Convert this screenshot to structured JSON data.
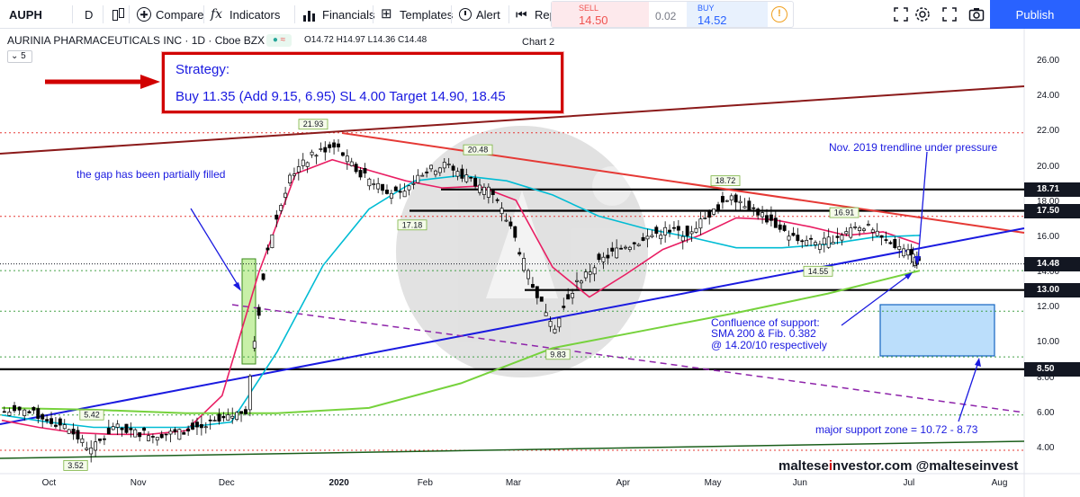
{
  "toolbar": {
    "symbol": "AUPH",
    "interval": "D",
    "compare": "Compare",
    "indicators": "Indicators",
    "financials": "Financials",
    "templates": "Templates",
    "alert": "Alert",
    "replay": "Replay",
    "sell_label": "SELL",
    "sell_price": "14.50",
    "spread": "0.02",
    "buy_label": "BUY",
    "buy_price": "14.52",
    "info": "!",
    "publish": "Publish"
  },
  "legend": {
    "title": "AURINIA PHARMACEUTICALS INC · 1D · Cboe BZX",
    "ohlc": "O14.72 H14.97 L14.36 C14.48",
    "chart_name": "Chart 2",
    "collapse": "5"
  },
  "strategy": {
    "title": "Strategy:",
    "text": "Buy 11.35 (Add 9.15, 6.95) SL 4.00 Target 14.90, 18.45"
  },
  "annotations": {
    "gap": "the gap has been partially filled",
    "trendline": "Nov. 2019 trendline under pressure",
    "confluence_1": "Confluence of support:",
    "confluence_2": "SMA 200 & Fib. 0.382",
    "confluence_3": "@ 14.20/10 respectively",
    "support_zone": "major support zone = 10.72 - 8.73"
  },
  "watermark": {
    "part1": "maltese",
    "part2": "i",
    "part3": "nvestor.com @malteseinvest"
  },
  "colors": {
    "accent": "#2962ff",
    "strategy_border": "#d10000",
    "annotation_text": "#1a1ae0",
    "sma_red": "#e91e63",
    "sma_cyan": "#00bcd4",
    "sma_green": "#76d23c",
    "trend_blue": "#1a1ae0",
    "resistance_red": "#e53935",
    "channel_darkred": "#8b1a1a",
    "support_zone_fill": "#bbdefb"
  },
  "icons": [
    "plus-circle-icon",
    "candles-icon",
    "fx-icon",
    "bars-icon",
    "templates-icon",
    "alarm-clock-icon",
    "replay-icon",
    "info-icon",
    "fullscreen-icon",
    "settings-icon",
    "fullscreen-icon",
    "camera-icon"
  ],
  "chart_data": {
    "type": "candlestick",
    "symbol": "AUPH",
    "x_ticks": [
      "Oct",
      "Nov",
      "Dec",
      "2020",
      "Feb",
      "Mar",
      "Apr",
      "May",
      "Jun",
      "Jul",
      "Aug"
    ],
    "y_ticks": [
      "26.00",
      "24.00",
      "22.00",
      "20.00",
      "18.00",
      "16.00",
      "14.00",
      "12.00",
      "10.00",
      "8.00",
      "6.00",
      "4.00"
    ],
    "ylim": [
      3.0,
      27.0
    ],
    "price_labels": [
      "18.71",
      "17.50",
      "14.48",
      "13.00",
      "8.50"
    ],
    "last_price": 14.48,
    "horizontal_levels": [
      18.71,
      17.5,
      13.0,
      8.5
    ],
    "dotted_levels": {
      "red": [
        21.93,
        17.18,
        3.9
      ],
      "green": [
        14.1,
        11.8,
        9.2,
        5.9
      ]
    },
    "peak_labels": [
      "21.93",
      "20.48",
      "18.72",
      "16.91",
      "17.18",
      "14.55",
      "9.83",
      "5.42",
      "3.52"
    ],
    "support_zone": [
      8.73,
      10.72
    ],
    "gap": [
      8.5,
      14.7
    ],
    "series": [
      {
        "type": "candlestick",
        "x": [
          "2019-09-23",
          "2019-10-01",
          "2019-10-08",
          "2019-10-15",
          "2019-10-22",
          "2019-10-29",
          "2019-11-05",
          "2019-11-12",
          "2019-11-19",
          "2019-11-26",
          "2019-12-03",
          "2019-12-10",
          "2019-12-17",
          "2019-12-24",
          "2019-12-31",
          "2020-01-07",
          "2020-01-14",
          "2020-01-21",
          "2020-01-28",
          "2020-02-04",
          "2020-02-11",
          "2020-02-18",
          "2020-02-25",
          "2020-03-03",
          "2020-03-10",
          "2020-03-17",
          "2020-03-24",
          "2020-03-31",
          "2020-04-07",
          "2020-04-14",
          "2020-04-21",
          "2020-04-28",
          "2020-05-05",
          "2020-05-12",
          "2020-05-19",
          "2020-05-26",
          "2020-06-02",
          "2020-06-09",
          "2020-06-16",
          "2020-06-23",
          "2020-06-30",
          "2020-07-07"
        ],
        "close": [
          6.1,
          5.7,
          5.1,
          3.9,
          5.2,
          4.9,
          4.8,
          4.9,
          5.2,
          5.6,
          6.2,
          15.4,
          19.5,
          20.6,
          21.3,
          19.8,
          19.0,
          18.3,
          19.7,
          20.1,
          19.4,
          18.7,
          16.6,
          13.2,
          10.9,
          13.4,
          14.6,
          15.4,
          15.9,
          16.4,
          16.2,
          17.3,
          18.4,
          17.6,
          16.7,
          15.8,
          15.6,
          16.2,
          16.7,
          15.7,
          15.3,
          14.48
        ]
      },
      {
        "name": "",
        "type": "sma_short",
        "values": [
          5.6,
          5.2,
          4.9,
          4.8,
          4.8,
          5.0,
          7.0,
          14.0,
          19.6,
          20.4,
          19.8,
          19.2,
          18.8,
          18.9,
          18.1,
          14.3,
          12.6,
          13.9,
          15.3,
          16.1,
          17.1,
          17.0,
          16.6,
          16.1,
          16.3,
          15.6
        ]
      },
      {
        "name": "",
        "type": "sma_mid",
        "values": [
          5.9,
          5.5,
          5.2,
          5.2,
          5.2,
          5.5,
          9.5,
          14.4,
          17.6,
          19.2,
          19.5,
          19.2,
          18.4,
          17.2,
          16.5,
          16.0,
          15.4,
          15.4,
          15.6,
          16.0,
          16.1
        ]
      },
      {
        "name": "",
        "type": "sma_long",
        "values": [
          6.3,
          6.2,
          6.0,
          6.0,
          6.3,
          7.7,
          9.7,
          10.7,
          11.7,
          12.8,
          14.1
        ]
      }
    ]
  }
}
